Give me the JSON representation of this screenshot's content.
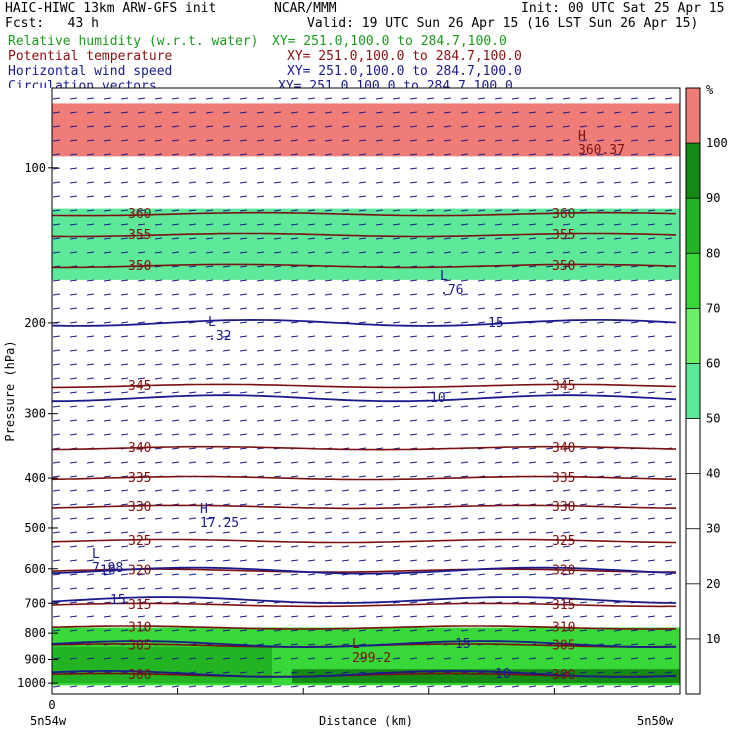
{
  "header": {
    "model": "HAIC-HIWC 13km ARW-GFS init",
    "org": "NCAR/MMM",
    "init": "Init: 00 UTC Sat 25 Apr 15",
    "fcst": "Fcst:   43 h",
    "valid": "Valid: 19 UTC Sun 26 Apr 15 (16 LST Sun 26 Apr 15)",
    "fields": [
      {
        "name": "Relative humidity (w.r.t. water)",
        "xy": "XY= 251.0,100.0 to 284.7,100.0",
        "color": "#1a9a1a"
      },
      {
        "name": "Potential temperature",
        "xy": "XY= 251.0,100.0 to 284.7,100.0",
        "color": "#8b1010"
      },
      {
        "name": "Horizontal wind speed",
        "xy": "XY= 251.0,100.0 to 284.7,100.0",
        "color": "#1a1a8c"
      },
      {
        "name": "Circulation vectors",
        "xy": "XY= 251.0,100.0 to 284.7,100.0",
        "color": "#1a1a8c"
      }
    ]
  },
  "chart_data": {
    "type": "cross-section",
    "ylabel": "Pressure (hPa)",
    "xlabel": "Distance (km)",
    "x_tick_labels": [
      "0"
    ],
    "x_end_labels": [
      "5n54w",
      "5n50w"
    ],
    "ylim": [
      1050,
      70
    ],
    "y_log": true,
    "y_ticks": [
      100,
      200,
      300,
      400,
      500,
      600,
      700,
      800,
      900,
      1000
    ],
    "colorbar": {
      "unit": "%",
      "ticks": [
        10,
        20,
        30,
        40,
        50,
        60,
        70,
        80,
        90,
        100
      ],
      "fills": [
        {
          "from": 50,
          "to": 60,
          "color": "#5ee89a"
        },
        {
          "from": 60,
          "to": 70,
          "color": "#6cf06c"
        },
        {
          "from": 70,
          "to": 80,
          "color": "#38d838"
        },
        {
          "from": 80,
          "to": 90,
          "color": "#22b422"
        },
        {
          "from": 90,
          "to": 100,
          "color": "#148a14"
        },
        {
          "from": 100,
          "to": 110,
          "color": "#f07c78"
        }
      ]
    },
    "theta_contours": [
      {
        "value": "360",
        "p": 123
      },
      {
        "value": "355",
        "p": 135
      },
      {
        "value": "350",
        "p": 155
      },
      {
        "value": "345",
        "p": 265
      },
      {
        "value": "340",
        "p": 350
      },
      {
        "value": "335",
        "p": 400
      },
      {
        "value": "330",
        "p": 455
      },
      {
        "value": "325",
        "p": 530
      },
      {
        "value": "320",
        "p": 605
      },
      {
        "value": "315",
        "p": 705
      },
      {
        "value": "310",
        "p": 780
      },
      {
        "value": "305",
        "p": 845
      },
      {
        "value": "300",
        "p": 965
      }
    ],
    "wind_contours": [
      {
        "value": "15",
        "p": 200
      },
      {
        "value": "10",
        "p": 280
      },
      {
        "value": "10",
        "p": 605
      },
      {
        "value": "15",
        "p": 690
      },
      {
        "value": "15",
        "p": 840
      },
      {
        "value": "10",
        "p": 960
      }
    ],
    "extrema": [
      {
        "kind": "H",
        "value": "360.37",
        "field": "theta"
      },
      {
        "kind": "L",
        "value": ".76",
        "field": "wind"
      },
      {
        "kind": "L",
        "value": ".32",
        "field": "wind"
      },
      {
        "kind": "H",
        "value": "17.25",
        "field": "wind"
      },
      {
        "kind": "L",
        "value": "7.98",
        "field": "wind"
      },
      {
        "kind": "L",
        "value": "299.2",
        "field": "theta"
      }
    ],
    "rh_regions": [
      {
        "p_top": 75,
        "p_bottom": 95,
        "rh": 105
      },
      {
        "p_top": 120,
        "p_bottom": 165,
        "rh": 55
      },
      {
        "p_top": 780,
        "p_bottom": 1010,
        "rh": 75
      }
    ]
  }
}
